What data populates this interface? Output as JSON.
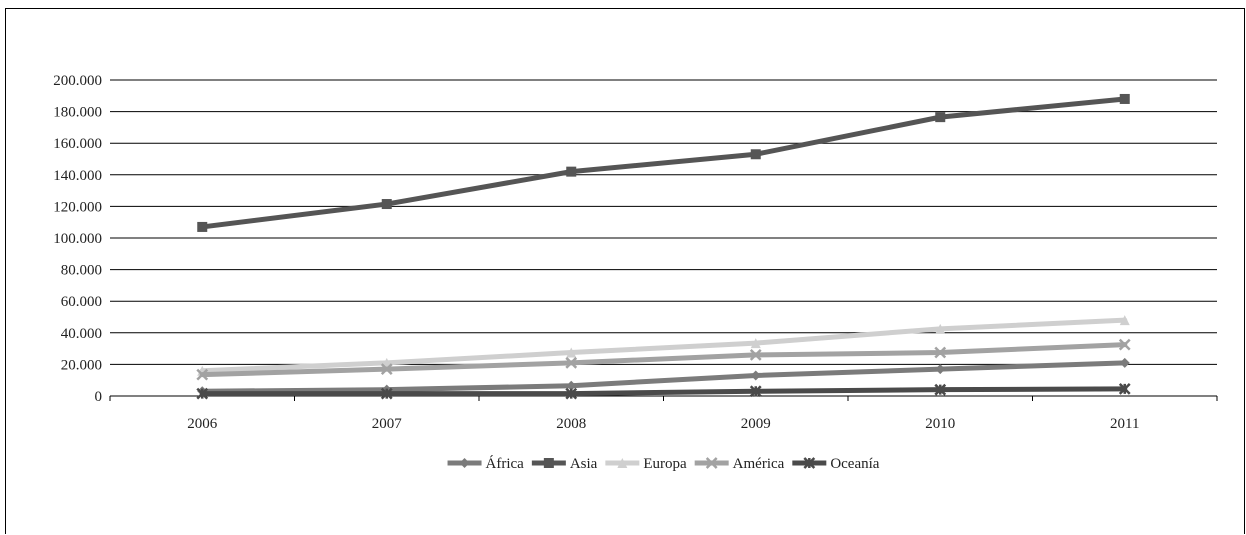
{
  "chart_data": {
    "type": "line",
    "title": "",
    "xlabel": "",
    "ylabel": "",
    "categories": [
      "2006",
      "2007",
      "2008",
      "2009",
      "2010",
      "2011"
    ],
    "ylim": [
      0,
      200000
    ],
    "yticks": [
      {
        "value": 0,
        "label": "0"
      },
      {
        "value": 20000,
        "label": "20.000"
      },
      {
        "value": 40000,
        "label": "40.000"
      },
      {
        "value": 60000,
        "label": "60.000"
      },
      {
        "value": 80000,
        "label": "80.000"
      },
      {
        "value": 100000,
        "label": "100.000"
      },
      {
        "value": 120000,
        "label": "120.000"
      },
      {
        "value": 140000,
        "label": "140.000"
      },
      {
        "value": 160000,
        "label": "160.000"
      },
      {
        "value": 180000,
        "label": "180.000"
      },
      {
        "value": 200000,
        "label": "200.000"
      }
    ],
    "grid": true,
    "legend_position": "bottom",
    "series": [
      {
        "name": "África",
        "color": "#7b7b7b",
        "marker": "diamond",
        "values": [
          3000,
          4000,
          6500,
          13000,
          17000,
          21000
        ]
      },
      {
        "name": "Asia",
        "color": "#555555",
        "marker": "square",
        "values": [
          107000,
          121500,
          142000,
          153000,
          176500,
          188000
        ]
      },
      {
        "name": "Europa",
        "color": "#cfcfcf",
        "marker": "triangle",
        "values": [
          16000,
          21000,
          27500,
          33500,
          42500,
          48000
        ]
      },
      {
        "name": "América",
        "color": "#a2a2a2",
        "marker": "x",
        "values": [
          13500,
          17000,
          21000,
          26000,
          27500,
          32500
        ]
      },
      {
        "name": "Oceanía",
        "color": "#4a4a4a",
        "marker": "star",
        "values": [
          1500,
          1500,
          1500,
          3000,
          4000,
          4500
        ]
      }
    ]
  }
}
